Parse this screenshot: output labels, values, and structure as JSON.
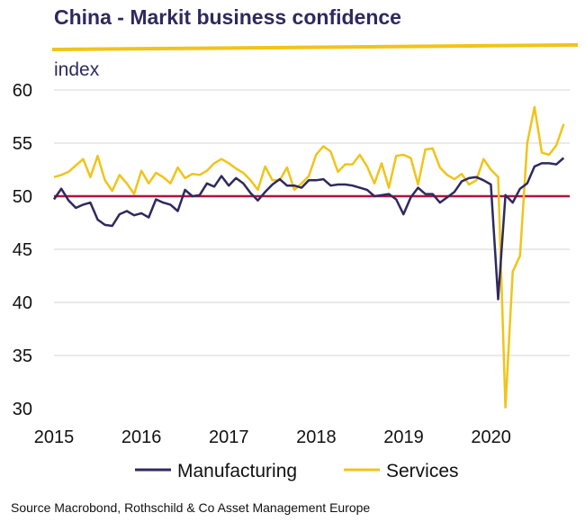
{
  "header": {
    "title": "China - Markit business confidence",
    "subtitle": "index"
  },
  "footer": {
    "source": "Source Macrobond, Rothschild  & Co Asset Management Europe"
  },
  "colors": {
    "manufacturing": "#2e2a5e",
    "services": "#f0c419",
    "reference_line": "#b5113d",
    "title_rule": "#f0c419",
    "grid": "#d4d4d4"
  },
  "chart_data": {
    "type": "line",
    "title": "China - Markit business confidence",
    "ylabel": "index",
    "ylim": [
      30,
      60
    ],
    "yticks": [
      30,
      35,
      40,
      45,
      50,
      55,
      60
    ],
    "xlim": [
      2015,
      2020.9
    ],
    "xticks": [
      {
        "value": 2015,
        "label": "2015"
      },
      {
        "value": 2016,
        "label": "2016"
      },
      {
        "value": 2017,
        "label": "2017"
      },
      {
        "value": 2018,
        "label": "2018"
      },
      {
        "value": 2019,
        "label": "2019"
      },
      {
        "value": 2020,
        "label": "2020"
      }
    ],
    "grid": "horizontal",
    "legend": "bottom",
    "reference_line": 50,
    "series": [
      {
        "name": "Manufacturing",
        "x_start": 2015.0,
        "x_step": 0.0833,
        "values": [
          49.7,
          50.7,
          49.6,
          48.9,
          49.2,
          49.4,
          47.8,
          47.3,
          47.2,
          48.3,
          48.6,
          48.2,
          48.4,
          48.0,
          49.7,
          49.4,
          49.2,
          48.6,
          50.6,
          50.0,
          50.1,
          51.2,
          50.9,
          51.9,
          51.0,
          51.7,
          51.2,
          50.3,
          49.6,
          50.4,
          51.1,
          51.6,
          51.0,
          51.0,
          50.8,
          51.5,
          51.5,
          51.6,
          51.0,
          51.1,
          51.1,
          51.0,
          50.8,
          50.6,
          50.0,
          50.1,
          50.2,
          49.7,
          48.3,
          49.9,
          50.8,
          50.2,
          50.2,
          49.4,
          49.9,
          50.4,
          51.4,
          51.7,
          51.8,
          51.5,
          51.1,
          40.3,
          50.1,
          49.4,
          50.7,
          51.2,
          52.8,
          53.1,
          53.1,
          53.0,
          53.6
        ]
      },
      {
        "name": "Services",
        "x_start": 2015.0,
        "x_step": 0.0833,
        "values": [
          51.8,
          52.0,
          52.3,
          52.9,
          53.5,
          51.8,
          53.8,
          51.5,
          50.5,
          52.0,
          51.2,
          50.2,
          52.4,
          51.2,
          52.2,
          51.8,
          51.2,
          52.7,
          51.7,
          52.1,
          52.0,
          52.4,
          53.1,
          53.5,
          53.1,
          52.6,
          52.2,
          51.5,
          50.6,
          52.8,
          51.5,
          51.5,
          52.7,
          50.6,
          51.2,
          51.9,
          53.9,
          54.7,
          54.2,
          52.3,
          53.0,
          53.0,
          53.9,
          52.8,
          51.2,
          53.1,
          50.8,
          53.8,
          53.9,
          53.6,
          51.1,
          54.4,
          54.5,
          52.7,
          52.0,
          51.6,
          52.1,
          51.1,
          51.5,
          53.5,
          52.5,
          51.8,
          30.1,
          42.9,
          44.4,
          55.0,
          58.4,
          54.1,
          53.9,
          54.8,
          56.8
        ]
      }
    ]
  }
}
